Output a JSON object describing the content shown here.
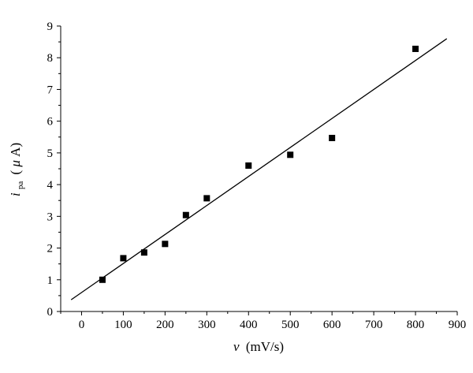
{
  "chart_data": {
    "type": "scatter",
    "title": "",
    "xlabel": {
      "var": "v",
      "unit": "(mV/s)"
    },
    "ylabel": {
      "var": "i",
      "sub": "pa",
      "open": "(",
      "mu": "μ",
      "unit": "A)"
    },
    "xlim": [
      -50,
      900
    ],
    "ylim": [
      0,
      9
    ],
    "xticks": [
      0,
      100,
      200,
      300,
      400,
      500,
      600,
      700,
      800,
      900
    ],
    "yticks": [
      0,
      1,
      2,
      3,
      4,
      5,
      6,
      7,
      8,
      9
    ],
    "grid": false,
    "legend": "none",
    "marker": "square",
    "marker_color": "#000000",
    "series": [
      {
        "x": [
          50,
          100,
          150,
          200,
          250,
          300,
          400,
          500,
          600,
          800
        ],
        "y": [
          1.0,
          1.68,
          1.86,
          2.13,
          3.04,
          3.57,
          4.6,
          4.94,
          5.47,
          8.28
        ]
      }
    ],
    "fit_line": {
      "x": [
        -25,
        875
      ],
      "y": [
        0.37,
        8.6
      ],
      "color": "#000000"
    }
  }
}
